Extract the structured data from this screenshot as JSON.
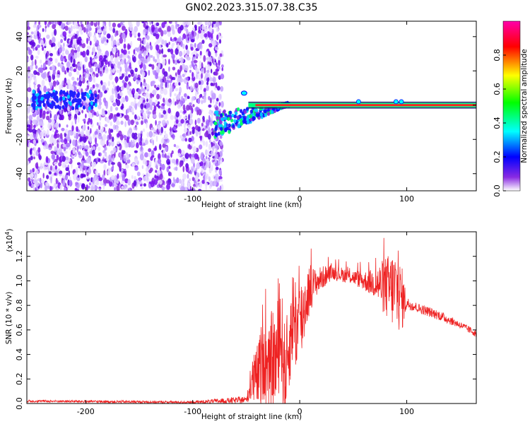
{
  "title": "GN02.2023.315.07.38.C35",
  "chart_data": [
    {
      "type": "heatmap",
      "name": "spectrogram",
      "xlabel": "Height of straight line (km)",
      "ylabel": "Frequency (Hz)",
      "xlim": [
        -255,
        165
      ],
      "ylim": [
        -50,
        49
      ],
      "xticks": [
        -200,
        -100,
        0,
        100
      ],
      "xtick_labels": [
        "-200",
        "-100",
        "0",
        "100"
      ],
      "yticks": [
        -40,
        -20,
        0,
        20,
        40
      ],
      "ytick_labels": [
        "-40",
        "-20",
        "0",
        "20",
        "40"
      ],
      "noise_region_x": [
        -255,
        -72
      ],
      "line_start_x": -48,
      "line_frequency": 0,
      "grid": false,
      "colorbar": {
        "label": "Normalized spectral amplitude",
        "range": [
          0.0,
          1.0
        ],
        "ticks": [
          0.0,
          0.2,
          0.4,
          0.6,
          0.8
        ],
        "tick_labels": [
          "0.0",
          "0.2",
          "0.4",
          "0.6",
          "0.8"
        ],
        "colormap": [
          "#ffffff",
          "#8a2be2",
          "#0000ff",
          "#00ffff",
          "#00ff00",
          "#ffff00",
          "#ff0000",
          "#ff00aa"
        ]
      }
    },
    {
      "type": "line",
      "name": "snr",
      "xlabel": "Height of straight line (km)",
      "ylabel": "SNR (10 * v/v)",
      "multiplier": "(x10",
      "multiplier_exp": "4",
      "multiplier_close": ")",
      "xlim": [
        -255,
        165
      ],
      "ylim": [
        0,
        1.4
      ],
      "xticks": [
        -200,
        -100,
        0,
        100
      ],
      "xtick_labels": [
        "-200",
        "-100",
        "0",
        "100"
      ],
      "yticks": [
        0.0,
        0.2,
        0.4,
        0.6,
        0.8,
        1.0,
        1.2
      ],
      "ytick_labels": [
        "0.0",
        "0.2",
        "0.4",
        "0.6",
        "0.8",
        "1.0",
        "1.2"
      ],
      "color": "#ee2222",
      "grid": false,
      "envelope": {
        "x": [
          -255,
          -100,
          -50,
          -47,
          -44,
          -40,
          -36,
          -34,
          -30,
          -26,
          -22,
          -18,
          -14,
          -10,
          -6,
          -2,
          2,
          6,
          10,
          14,
          20,
          30,
          40,
          50,
          60,
          70,
          80,
          90,
          96,
          100,
          110,
          130,
          150,
          165
        ],
        "base": [
          0.02,
          0.01,
          0.03,
          0.1,
          0.18,
          0.22,
          0.3,
          0.5,
          0.2,
          0.38,
          0.35,
          0.6,
          0.25,
          0.45,
          0.75,
          0.6,
          0.7,
          0.85,
          0.95,
          0.98,
          1.02,
          1.07,
          1.05,
          1.03,
          1.0,
          0.98,
          0.95,
          0.92,
          0.85,
          0.82,
          0.78,
          0.72,
          0.64,
          0.57
        ],
        "amp": [
          0.01,
          0.01,
          0.03,
          0.08,
          0.2,
          0.25,
          0.35,
          0.45,
          0.3,
          0.4,
          0.4,
          0.45,
          0.4,
          0.35,
          0.4,
          0.4,
          0.35,
          0.25,
          0.2,
          0.12,
          0.1,
          0.06,
          0.06,
          0.06,
          0.08,
          0.12,
          0.25,
          0.35,
          0.25,
          0.05,
          0.04,
          0.04,
          0.03,
          0.03
        ]
      }
    }
  ]
}
